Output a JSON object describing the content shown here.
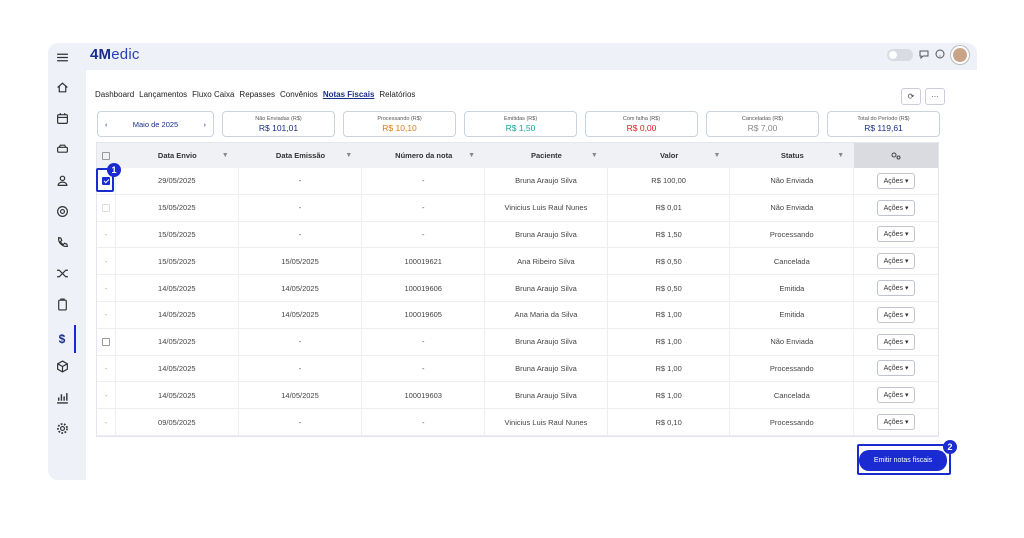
{
  "brand": {
    "prefix": "4M",
    "rest": "edic"
  },
  "tabs": [
    "Dashboard",
    "Lançamentos",
    "Fluxo Caixa",
    "Repasses",
    "Convênios",
    "Notas Fiscais",
    "Relatórios"
  ],
  "active_tab": "Notas Fiscais",
  "period": {
    "label": "Maio de 2025",
    "prev": "‹",
    "next": "›"
  },
  "summary_cards": [
    {
      "label": "Não Enviadas (R$)",
      "value": "R$ 101,01",
      "color": "#1a2f8a"
    },
    {
      "label": "Processando (R$)",
      "value": "R$ 10,10",
      "color": "#e07b1a"
    },
    {
      "label": "Emitidas (R$)",
      "value": "R$ 1,50",
      "color": "#1aa39a"
    },
    {
      "label": "Com falha (R$)",
      "value": "R$ 0,00",
      "color": "#e02020"
    },
    {
      "label": "Canceladas (R$)",
      "value": "R$ 7,00",
      "color": "#888888"
    },
    {
      "label": "Total do Período (R$)",
      "value": "R$ 119,61",
      "color": "#1a2f8a"
    }
  ],
  "columns": [
    "Data Envio",
    "Data Emissão",
    "Número da nota",
    "Paciente",
    "Valor",
    "Status"
  ],
  "rows": [
    {
      "select": "checked",
      "data_envio": "29/05/2025",
      "data_emissao": "-",
      "numero": "-",
      "paciente": "Bruna Araujo Silva",
      "valor": "R$ 100,00",
      "status": "Não Enviada",
      "acoes": "Ações ▾"
    },
    {
      "select": "disabled",
      "data_envio": "15/05/2025",
      "data_emissao": "-",
      "numero": "-",
      "paciente": "Vinicius Luis Raul Nunes",
      "valor": "R$ 0,01",
      "status": "Não Enviada",
      "acoes": "Ações ▾"
    },
    {
      "select": "dash",
      "data_envio": "15/05/2025",
      "data_emissao": "-",
      "numero": "-",
      "paciente": "Bruna Araujo Silva",
      "valor": "R$ 1,50",
      "status": "Processando",
      "acoes": "Ações ▾"
    },
    {
      "select": "dash",
      "data_envio": "15/05/2025",
      "data_emissao": "15/05/2025",
      "numero": "100019621",
      "paciente": "Ana Ribeiro Silva",
      "valor": "R$ 0,50",
      "status": "Cancelada",
      "acoes": "Ações ▾"
    },
    {
      "select": "dash",
      "data_envio": "14/05/2025",
      "data_emissao": "14/05/2025",
      "numero": "100019606",
      "paciente": "Bruna Araujo Silva",
      "valor": "R$ 0,50",
      "status": "Emitida",
      "acoes": "Ações ▾"
    },
    {
      "select": "dash",
      "data_envio": "14/05/2025",
      "data_emissao": "14/05/2025",
      "numero": "100019605",
      "paciente": "Ana Maria da Silva",
      "valor": "R$ 1,00",
      "status": "Emitida",
      "acoes": "Ações ▾"
    },
    {
      "select": "unchecked",
      "data_envio": "14/05/2025",
      "data_emissao": "-",
      "numero": "-",
      "paciente": "Bruna Araujo Silva",
      "valor": "R$ 1,00",
      "status": "Não Enviada",
      "acoes": "Ações ▾"
    },
    {
      "select": "dash",
      "data_envio": "14/05/2025",
      "data_emissao": "-",
      "numero": "-",
      "paciente": "Bruna Araujo Silva",
      "valor": "R$ 1,00",
      "status": "Processando",
      "acoes": "Ações ▾"
    },
    {
      "select": "dash",
      "data_envio": "14/05/2025",
      "data_emissao": "14/05/2025",
      "numero": "100019603",
      "paciente": "Bruna Araujo Silva",
      "valor": "R$ 1,00",
      "status": "Cancelada",
      "acoes": "Ações ▾"
    },
    {
      "select": "dash",
      "data_envio": "09/05/2025",
      "data_emissao": "-",
      "numero": "-",
      "paciente": "Vinicius Luis Raul Nunes",
      "valor": "R$ 0,10",
      "status": "Processando",
      "acoes": "Ações ▾"
    }
  ],
  "emit_button": "Emitir notas fiscais",
  "markers": [
    "1",
    "2"
  ],
  "toolbar": {
    "refresh": "⟳",
    "more": "···"
  },
  "sidebar_icons": [
    "menu-icon",
    "home-icon",
    "calendar-icon",
    "car-icon",
    "user-icon",
    "at-icon",
    "phone-icon",
    "shuffle-icon",
    "clipboard-icon",
    "dollar-icon",
    "box-icon",
    "chart-icon",
    "settings-icon"
  ],
  "dollar_symbol": "$",
  "accent": "#1a2bd1"
}
